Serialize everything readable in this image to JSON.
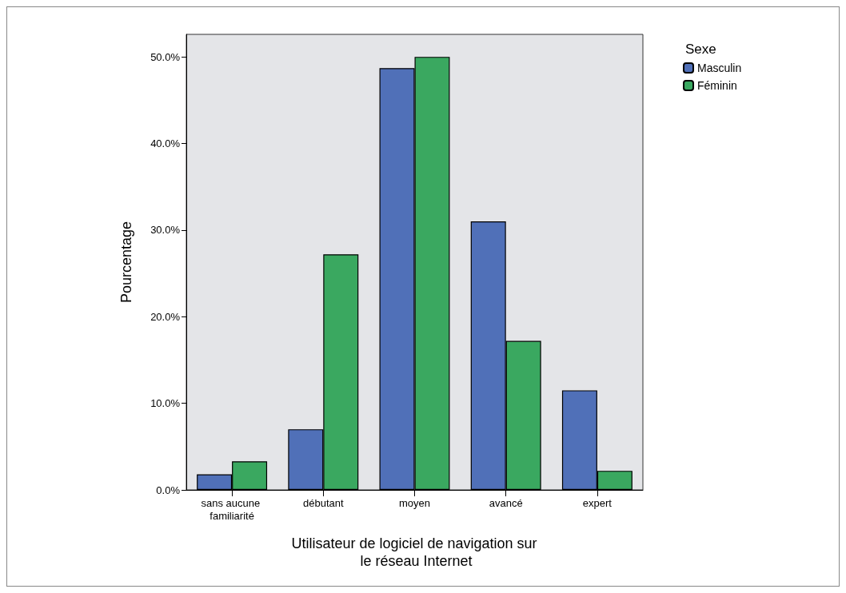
{
  "chart_data": {
    "type": "bar",
    "xlabel": "Utilisateur de logiciel de navigation sur le réseau Internet",
    "ylabel": "Pourcentage",
    "legend_title": "Sexe",
    "legend": "top right",
    "categories": [
      "sans aucune familiarité",
      "débutant",
      "moyen",
      "avancé",
      "expert"
    ],
    "series": [
      {
        "name": "Masculin",
        "color": "#5070b8",
        "values": [
          1.8,
          7.0,
          48.7,
          31.0,
          11.5
        ]
      },
      {
        "name": "Féminin",
        "color": "#3aa860",
        "values": [
          3.3,
          27.2,
          50.0,
          17.2,
          2.2
        ]
      }
    ],
    "ylim": [
      0,
      52.6
    ],
    "yticks": [
      {
        "value": 0,
        "label": "0.0%"
      },
      {
        "value": 10,
        "label": "10.0%"
      },
      {
        "value": 20,
        "label": "20.0%"
      },
      {
        "value": 30,
        "label": "30.0%"
      },
      {
        "value": 40,
        "label": "40.0%"
      },
      {
        "value": 50,
        "label": "50.0%"
      }
    ],
    "grid": false
  }
}
